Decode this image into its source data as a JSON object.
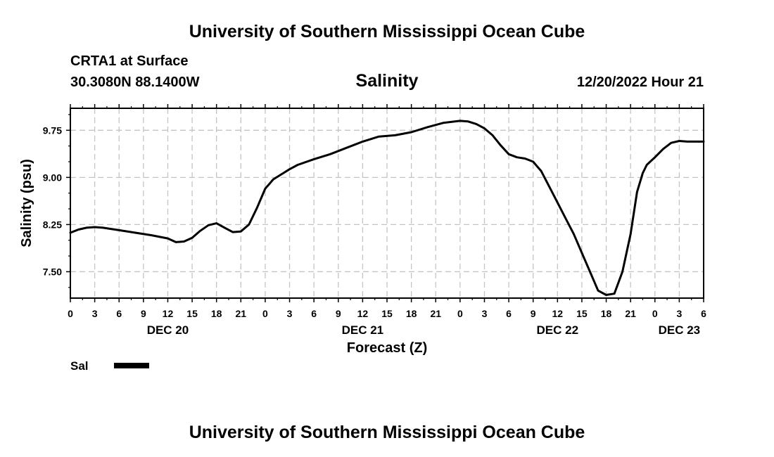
{
  "page": {
    "top_title": "University of Southern Mississippi Ocean Cube",
    "bottom_title": "University of Southern Mississippi Ocean Cube",
    "station": "CRTA1 at Surface",
    "coords": "30.3080N  88.1400W",
    "variable": "Salinity",
    "run_time": "12/20/2022 Hour 21"
  },
  "chart_data": {
    "type": "line",
    "title": "Salinity",
    "xlabel": "Forecast (Z)",
    "ylabel": "Salinity (psu)",
    "x_unit": "hours since DEC 20 00Z",
    "xlim": [
      0,
      78
    ],
    "ylim": [
      7.08,
      10.1
    ],
    "grid": true,
    "x_ticks": [
      0,
      3,
      6,
      9,
      12,
      15,
      18,
      21,
      24,
      27,
      30,
      33,
      36,
      39,
      42,
      45,
      48,
      51,
      54,
      57,
      60,
      63,
      66,
      69,
      72,
      75,
      78
    ],
    "x_tick_labels": [
      "0",
      "3",
      "6",
      "9",
      "12",
      "15",
      "18",
      "21",
      "0",
      "3",
      "6",
      "9",
      "12",
      "15",
      "18",
      "21",
      "0",
      "3",
      "6",
      "9",
      "12",
      "15",
      "18",
      "21",
      "0",
      "3",
      "6"
    ],
    "y_ticks": [
      7.5,
      8.25,
      9.0,
      9.75
    ],
    "y_tick_labels": [
      "7.50",
      "8.25",
      "9.00",
      "9.75"
    ],
    "date_labels": [
      {
        "x": 12,
        "label": "DEC 20"
      },
      {
        "x": 36,
        "label": "DEC 21"
      },
      {
        "x": 60,
        "label": "DEC 22"
      },
      {
        "x": 75,
        "label": "DEC 23"
      }
    ],
    "legend": [
      {
        "name": "Sal",
        "placement": "bottom-left"
      }
    ],
    "series": [
      {
        "name": "Sal",
        "x": [
          0,
          1,
          2,
          3,
          4,
          6,
          8,
          10,
          12,
          13,
          14,
          15,
          16,
          17,
          18,
          19,
          20,
          21,
          22,
          23,
          24,
          25,
          26,
          27,
          28,
          30,
          32,
          34,
          36,
          38,
          40,
          42,
          44,
          46,
          48,
          49,
          50,
          51,
          52,
          53,
          54,
          55,
          56,
          57,
          58,
          59,
          60,
          61,
          62,
          63,
          64,
          65,
          66,
          67,
          68,
          69,
          69.8,
          70.5,
          71,
          72,
          73,
          74,
          75,
          76,
          77,
          78
        ],
        "values": [
          8.12,
          8.17,
          8.2,
          8.21,
          8.2,
          8.16,
          8.12,
          8.08,
          8.03,
          7.97,
          7.98,
          8.04,
          8.15,
          8.24,
          8.27,
          8.2,
          8.13,
          8.14,
          8.25,
          8.52,
          8.82,
          8.97,
          9.05,
          9.13,
          9.2,
          9.29,
          9.37,
          9.47,
          9.57,
          9.65,
          9.67,
          9.72,
          9.8,
          9.87,
          9.9,
          9.89,
          9.85,
          9.78,
          9.67,
          9.51,
          9.37,
          9.32,
          9.3,
          9.25,
          9.1,
          8.85,
          8.6,
          8.35,
          8.1,
          7.8,
          7.5,
          7.2,
          7.13,
          7.15,
          7.5,
          8.1,
          8.77,
          9.07,
          9.2,
          9.32,
          9.45,
          9.55,
          9.58,
          9.57,
          9.57,
          9.57
        ]
      }
    ]
  }
}
